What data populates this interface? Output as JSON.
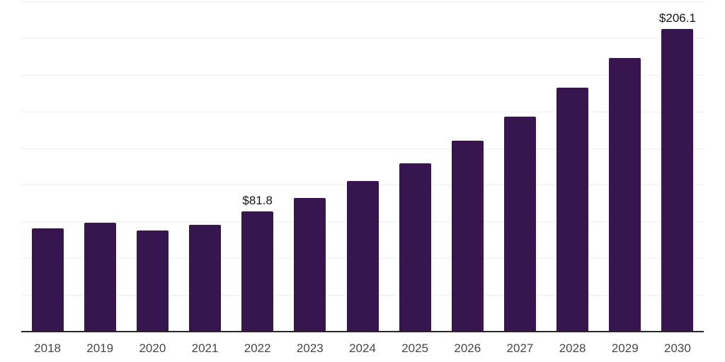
{
  "chart_data": {
    "type": "bar",
    "title": "",
    "xlabel": "",
    "ylabel": "",
    "categories": [
      "2018",
      "2019",
      "2020",
      "2021",
      "2022",
      "2023",
      "2024",
      "2025",
      "2026",
      "2027",
      "2028",
      "2029",
      "2030"
    ],
    "values": [
      70.5,
      74.1,
      68.7,
      73.0,
      81.8,
      91.1,
      102.4,
      114.7,
      130.2,
      146.6,
      166.3,
      186.5,
      206.1
    ],
    "value_labels": {
      "2022": "$81.8",
      "2030": "$206.1"
    },
    "ylim": [
      0,
      225
    ],
    "grid_step": 25,
    "grid": "horizontal only, no y tick labels, no legend",
    "legend_position": "none",
    "colors": {
      "bar": "#37164f",
      "gridline": "#f0f0f0",
      "axis_line": "#262626",
      "tick_label": "#474747",
      "value_label": "#141414",
      "background": "#ffffff"
    }
  }
}
